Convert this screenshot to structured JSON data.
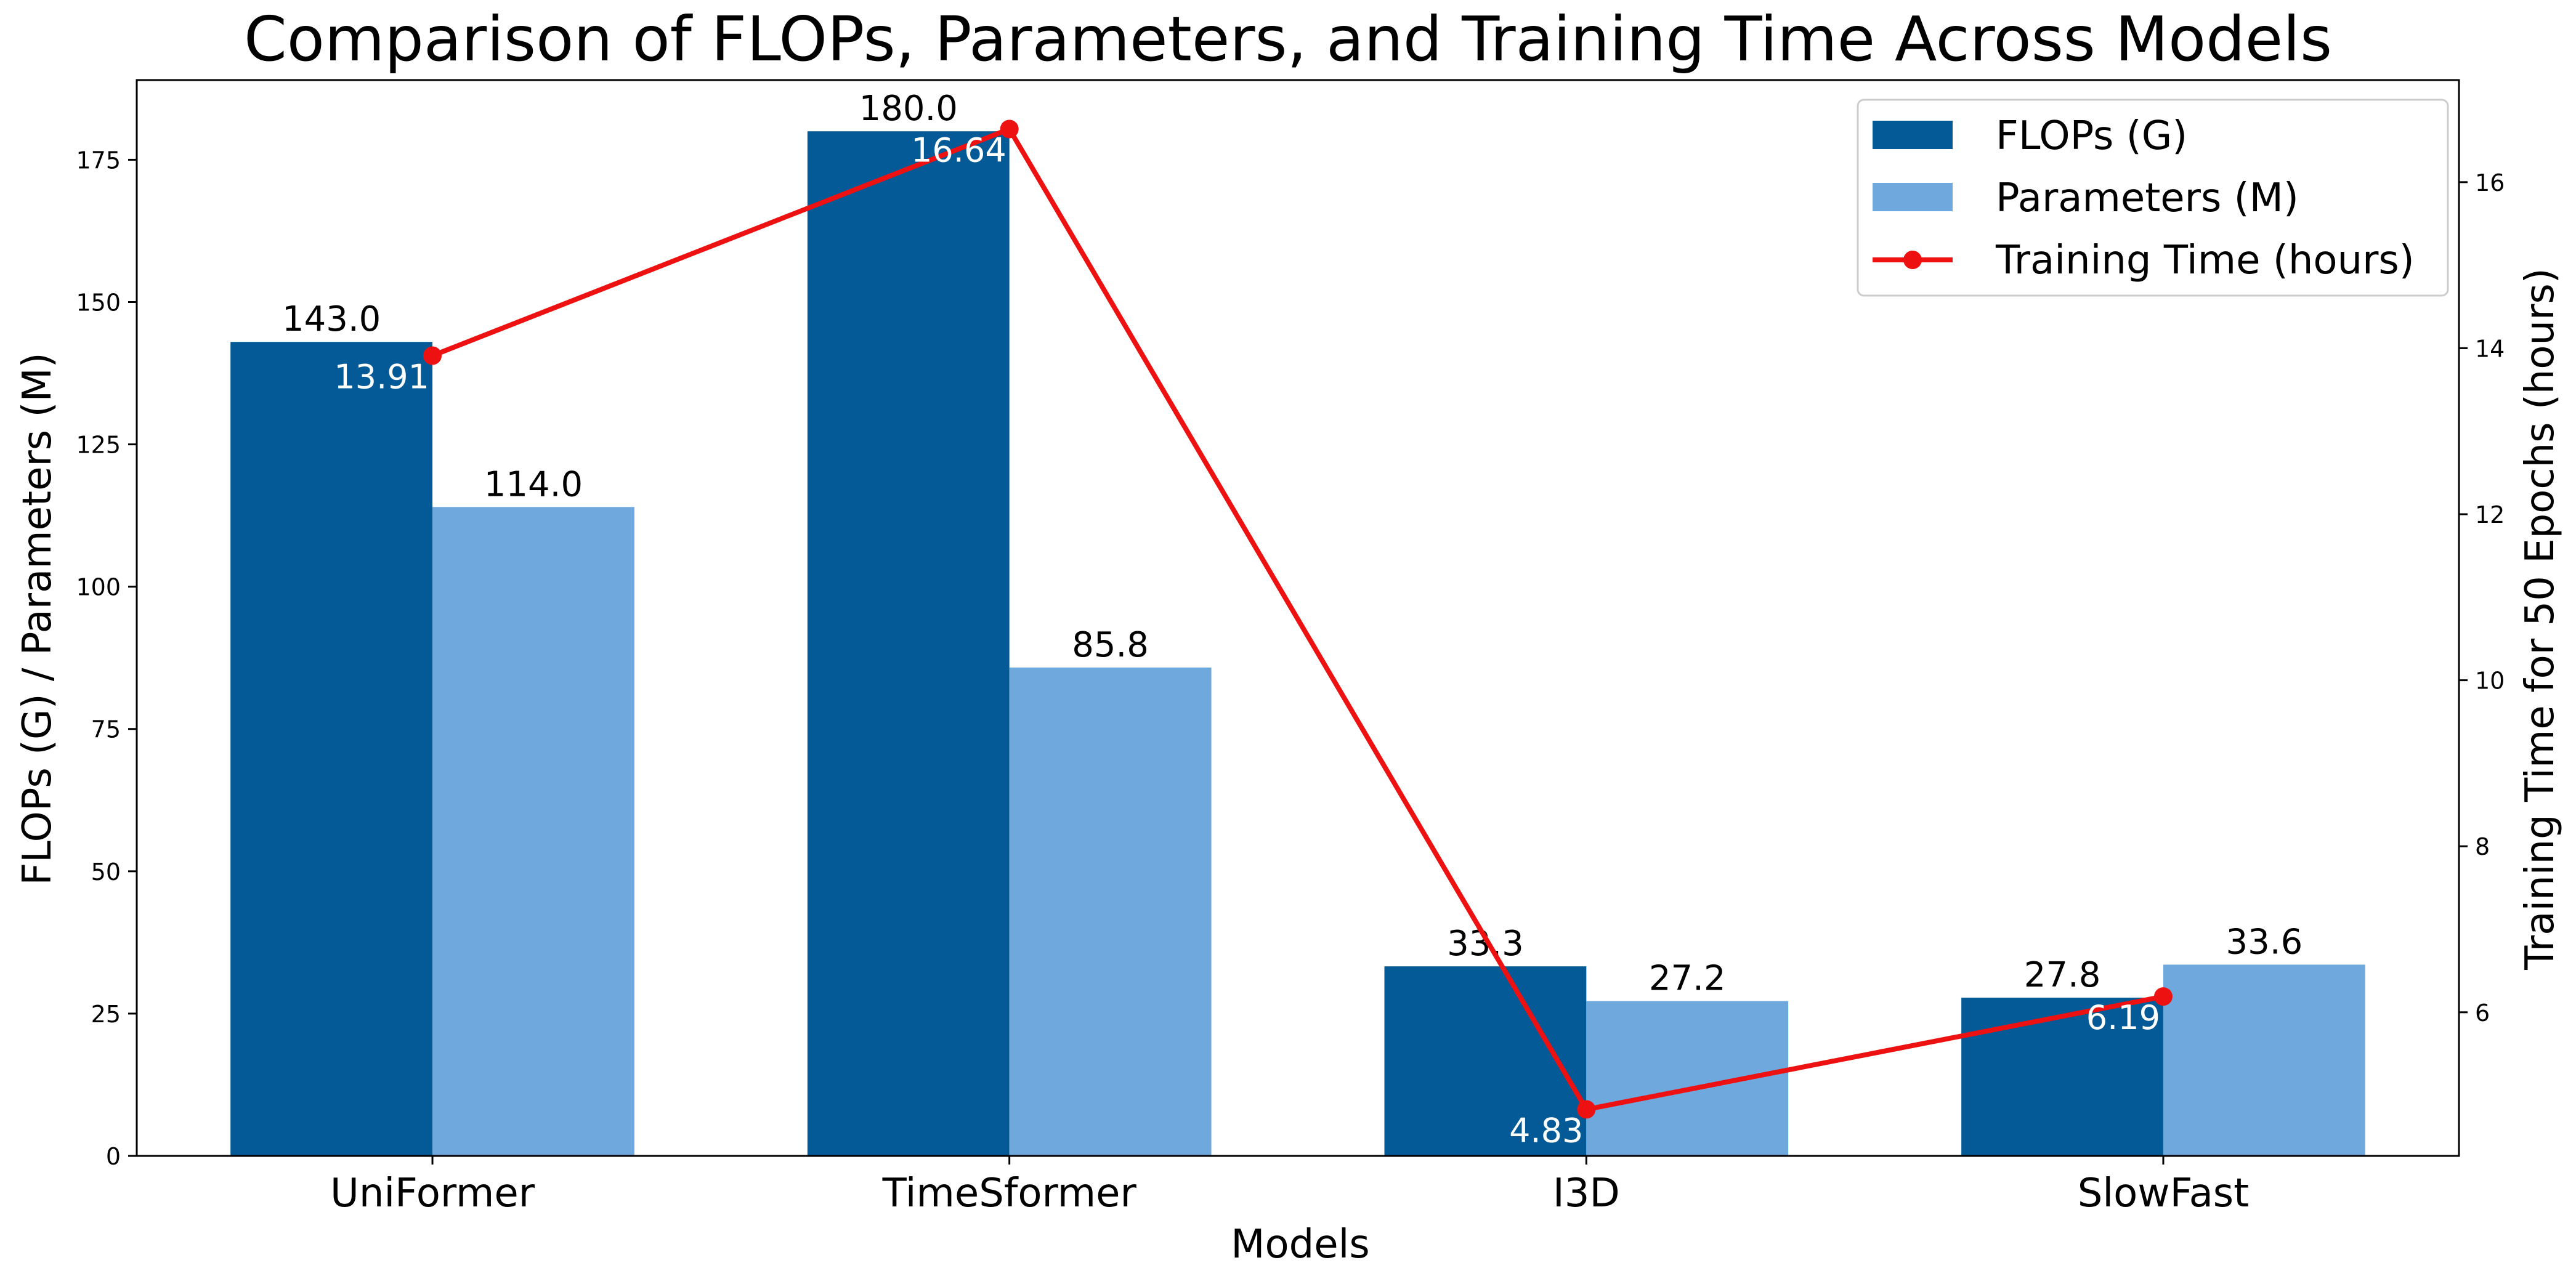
{
  "chart_data": {
    "type": "bar",
    "title": "Comparison of FLOPs, Parameters, and Training Time Across Models",
    "xlabel": "Models",
    "ylabel": "FLOPs (G) / Parameters (M)",
    "y2label": "Training Time for 50 Epochs (hours)",
    "categories": [
      "UniFormer",
      "TimeSformer",
      "I3D",
      "SlowFast"
    ],
    "ylim": [
      0,
      189
    ],
    "y_ticks": [
      0,
      25,
      50,
      75,
      100,
      125,
      150,
      175
    ],
    "y2lim": [
      4.27,
      17.23
    ],
    "y2_ticks": [
      6,
      8,
      10,
      12,
      14,
      16
    ],
    "series": [
      {
        "name": "FLOPs (G)",
        "type": "bar",
        "axis": "left",
        "color": "#045a96",
        "values": [
          143.0,
          180.0,
          33.3,
          27.8
        ],
        "labels": [
          "143.0",
          "180.0",
          "33.3",
          "27.8"
        ]
      },
      {
        "name": "Parameters (M)",
        "type": "bar",
        "axis": "left",
        "color": "#6fa8dc",
        "values": [
          114.0,
          85.8,
          27.2,
          33.6
        ],
        "labels": [
          "114.0",
          "85.8",
          "27.2",
          "33.6"
        ]
      },
      {
        "name": "Training Time (hours)",
        "type": "line",
        "axis": "right",
        "color": "#ee1111",
        "values": [
          13.91,
          16.64,
          4.83,
          6.19
        ],
        "labels": [
          "13.91",
          "16.64",
          "4.83",
          "6.19"
        ]
      }
    ],
    "legend": {
      "placement": "top-right"
    },
    "grid": false
  }
}
